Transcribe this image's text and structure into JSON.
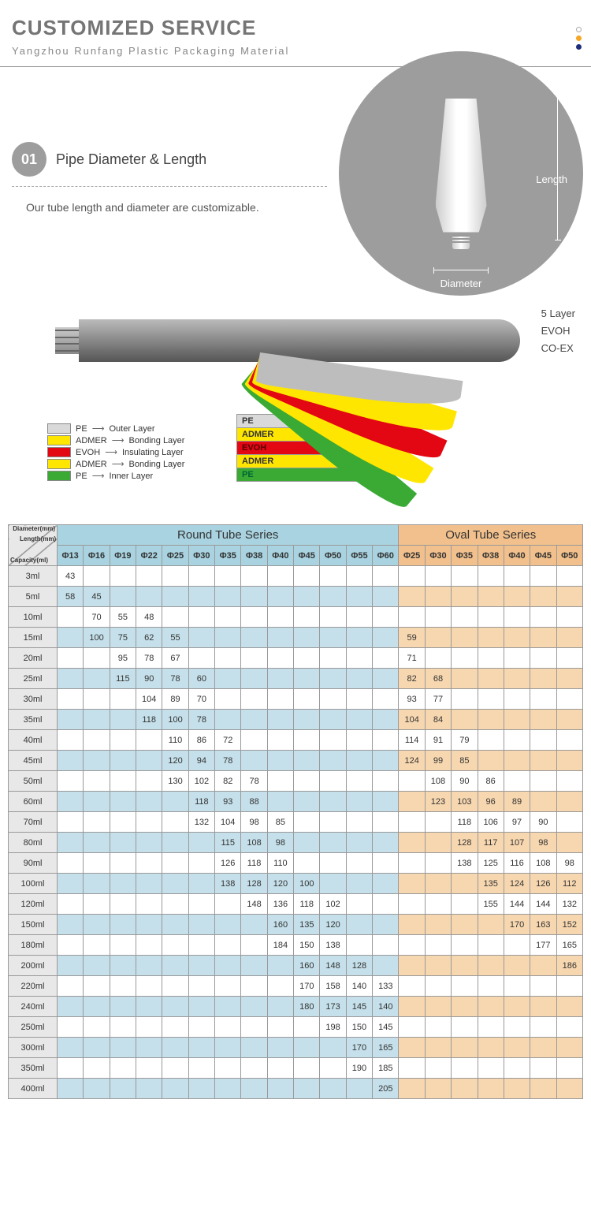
{
  "header": {
    "title": "CUSTOMIZED SERVICE",
    "subtitle": "Yangzhou Runfang Plastic Packaging Material"
  },
  "dots": {
    "colors": [
      "#ffffff",
      "#f5a623",
      "#1f2e7a"
    ]
  },
  "section1": {
    "badge": "01",
    "title": "Pipe Diameter & Length",
    "desc": "Our tube length and diameter are customizable.",
    "length_label": "Length",
    "diameter_label": "Diameter"
  },
  "layers": {
    "side_labels": [
      "5 Layer",
      "EVOH",
      "CO-EX"
    ],
    "legend": [
      {
        "color": "#d9d9d9",
        "name": "PE",
        "desc": "Outer Layer"
      },
      {
        "color": "#ffe600",
        "name": "ADMER",
        "desc": "Bonding Layer"
      },
      {
        "color": "#e30613",
        "name": "EVOH",
        "desc": "Insulating Layer"
      },
      {
        "color": "#ffe600",
        "name": "ADMER",
        "desc": "Bonding Layer"
      },
      {
        "color": "#3aaa35",
        "name": "PE",
        "desc": "Inner Layer"
      }
    ],
    "boxes": [
      "PE",
      "ADMER",
      "EVOH",
      "ADMER",
      "PE"
    ]
  },
  "table": {
    "header_label": {
      "diameter": "Diameter(mm)",
      "length": "Length(mm)",
      "capacity": "Capacity(ml)"
    },
    "round_title": "Round Tube Series",
    "oval_title": "Oval Tube Series",
    "round_cols": [
      "Φ13",
      "Φ16",
      "Φ19",
      "Φ22",
      "Φ25",
      "Φ30",
      "Φ35",
      "Φ38",
      "Φ40",
      "Φ45",
      "Φ50",
      "Φ55",
      "Φ60"
    ],
    "oval_cols": [
      "Φ25",
      "Φ30",
      "Φ35",
      "Φ38",
      "Φ40",
      "Φ45",
      "Φ50"
    ],
    "capacities": [
      "3ml",
      "5ml",
      "10ml",
      "15ml",
      "20ml",
      "25ml",
      "30ml",
      "35ml",
      "40ml",
      "45ml",
      "50ml",
      "60ml",
      "70ml",
      "80ml",
      "90ml",
      "100ml",
      "120ml",
      "150ml",
      "180ml",
      "200ml",
      "220ml",
      "240ml",
      "250ml",
      "300ml",
      "350ml",
      "400ml"
    ],
    "round_data": {
      "3ml": [
        "43",
        "",
        "",
        "",
        "",
        "",
        "",
        "",
        "",
        "",
        "",
        "",
        ""
      ],
      "5ml": [
        "58",
        "45",
        "",
        "",
        "",
        "",
        "",
        "",
        "",
        "",
        "",
        "",
        ""
      ],
      "10ml": [
        "",
        "70",
        "55",
        "48",
        "",
        "",
        "",
        "",
        "",
        "",
        "",
        "",
        ""
      ],
      "15ml": [
        "",
        "100",
        "75",
        "62",
        "55",
        "",
        "",
        "",
        "",
        "",
        "",
        "",
        ""
      ],
      "20ml": [
        "",
        "",
        "95",
        "78",
        "67",
        "",
        "",
        "",
        "",
        "",
        "",
        "",
        ""
      ],
      "25ml": [
        "",
        "",
        "115",
        "90",
        "78",
        "60",
        "",
        "",
        "",
        "",
        "",
        "",
        ""
      ],
      "30ml": [
        "",
        "",
        "",
        "104",
        "89",
        "70",
        "",
        "",
        "",
        "",
        "",
        "",
        ""
      ],
      "35ml": [
        "",
        "",
        "",
        "118",
        "100",
        "78",
        "",
        "",
        "",
        "",
        "",
        "",
        ""
      ],
      "40ml": [
        "",
        "",
        "",
        "",
        "110",
        "86",
        "72",
        "",
        "",
        "",
        "",
        "",
        ""
      ],
      "45ml": [
        "",
        "",
        "",
        "",
        "120",
        "94",
        "78",
        "",
        "",
        "",
        "",
        "",
        ""
      ],
      "50ml": [
        "",
        "",
        "",
        "",
        "130",
        "102",
        "82",
        "78",
        "",
        "",
        "",
        "",
        ""
      ],
      "60ml": [
        "",
        "",
        "",
        "",
        "",
        "118",
        "93",
        "88",
        "",
        "",
        "",
        "",
        ""
      ],
      "70ml": [
        "",
        "",
        "",
        "",
        "",
        "132",
        "104",
        "98",
        "85",
        "",
        "",
        "",
        ""
      ],
      "80ml": [
        "",
        "",
        "",
        "",
        "",
        "",
        "115",
        "108",
        "98",
        "",
        "",
        "",
        ""
      ],
      "90ml": [
        "",
        "",
        "",
        "",
        "",
        "",
        "126",
        "118",
        "110",
        "",
        "",
        "",
        ""
      ],
      "100ml": [
        "",
        "",
        "",
        "",
        "",
        "",
        "138",
        "128",
        "120",
        "100",
        "",
        "",
        ""
      ],
      "120ml": [
        "",
        "",
        "",
        "",
        "",
        "",
        "",
        "148",
        "136",
        "118",
        "102",
        "",
        ""
      ],
      "150ml": [
        "",
        "",
        "",
        "",
        "",
        "",
        "",
        "",
        "160",
        "135",
        "120",
        "",
        ""
      ],
      "180ml": [
        "",
        "",
        "",
        "",
        "",
        "",
        "",
        "",
        "184",
        "150",
        "138",
        "",
        ""
      ],
      "200ml": [
        "",
        "",
        "",
        "",
        "",
        "",
        "",
        "",
        "",
        "160",
        "148",
        "128",
        ""
      ],
      "220ml": [
        "",
        "",
        "",
        "",
        "",
        "",
        "",
        "",
        "",
        "170",
        "158",
        "140",
        "133"
      ],
      "240ml": [
        "",
        "",
        "",
        "",
        "",
        "",
        "",
        "",
        "",
        "180",
        "173",
        "145",
        "140"
      ],
      "250ml": [
        "",
        "",
        "",
        "",
        "",
        "",
        "",
        "",
        "",
        "",
        "198",
        "150",
        "145"
      ],
      "300ml": [
        "",
        "",
        "",
        "",
        "",
        "",
        "",
        "",
        "",
        "",
        "",
        "170",
        "165"
      ],
      "350ml": [
        "",
        "",
        "",
        "",
        "",
        "",
        "",
        "",
        "",
        "",
        "",
        "190",
        "185"
      ],
      "400ml": [
        "",
        "",
        "",
        "",
        "",
        "",
        "",
        "",
        "",
        "",
        "",
        "",
        "205"
      ]
    },
    "oval_data": {
      "3ml": [
        "",
        "",
        "",
        "",
        "",
        "",
        ""
      ],
      "5ml": [
        "",
        "",
        "",
        "",
        "",
        "",
        ""
      ],
      "10ml": [
        "",
        "",
        "",
        "",
        "",
        "",
        ""
      ],
      "15ml": [
        "59",
        "",
        "",
        "",
        "",
        "",
        ""
      ],
      "20ml": [
        "71",
        "",
        "",
        "",
        "",
        "",
        ""
      ],
      "25ml": [
        "82",
        "68",
        "",
        "",
        "",
        "",
        ""
      ],
      "30ml": [
        "93",
        "77",
        "",
        "",
        "",
        "",
        ""
      ],
      "35ml": [
        "104",
        "84",
        "",
        "",
        "",
        "",
        ""
      ],
      "40ml": [
        "114",
        "91",
        "79",
        "",
        "",
        "",
        ""
      ],
      "45ml": [
        "124",
        "99",
        "85",
        "",
        "",
        "",
        ""
      ],
      "50ml": [
        "",
        "108",
        "90",
        "86",
        "",
        "",
        ""
      ],
      "60ml": [
        "",
        "123",
        "103",
        "96",
        "89",
        "",
        ""
      ],
      "70ml": [
        "",
        "",
        "118",
        "106",
        "97",
        "90",
        ""
      ],
      "80ml": [
        "",
        "",
        "128",
        "117",
        "107",
        "98",
        ""
      ],
      "90ml": [
        "",
        "",
        "138",
        "125",
        "116",
        "108",
        "98"
      ],
      "100ml": [
        "",
        "",
        "",
        "135",
        "124",
        "126",
        "112"
      ],
      "120ml": [
        "",
        "",
        "",
        "155",
        "144",
        "144",
        "132"
      ],
      "150ml": [
        "",
        "",
        "",
        "",
        "170",
        "163",
        "152"
      ],
      "180ml": [
        "",
        "",
        "",
        "",
        "",
        "177",
        "165"
      ],
      "200ml": [
        "",
        "",
        "",
        "",
        "",
        "",
        "186"
      ],
      "220ml": [
        "",
        "",
        "",
        "",
        "",
        "",
        ""
      ],
      "240ml": [
        "",
        "",
        "",
        "",
        "",
        "",
        ""
      ],
      "250ml": [
        "",
        "",
        "",
        "",
        "",
        "",
        ""
      ],
      "300ml": [
        "",
        "",
        "",
        "",
        "",
        "",
        ""
      ],
      "350ml": [
        "",
        "",
        "",
        "",
        "",
        "",
        ""
      ],
      "400ml": [
        "",
        "",
        "",
        "",
        "",
        "",
        ""
      ]
    },
    "colors": {
      "round_header": "#a9d3e0",
      "oval_header": "#f2c08c",
      "round_alt": "#c5e0ea",
      "oval_alt": "#f7d7b0",
      "plain": "#ffffff",
      "label_bg": "#e8e8e8",
      "border": "#999999"
    }
  }
}
